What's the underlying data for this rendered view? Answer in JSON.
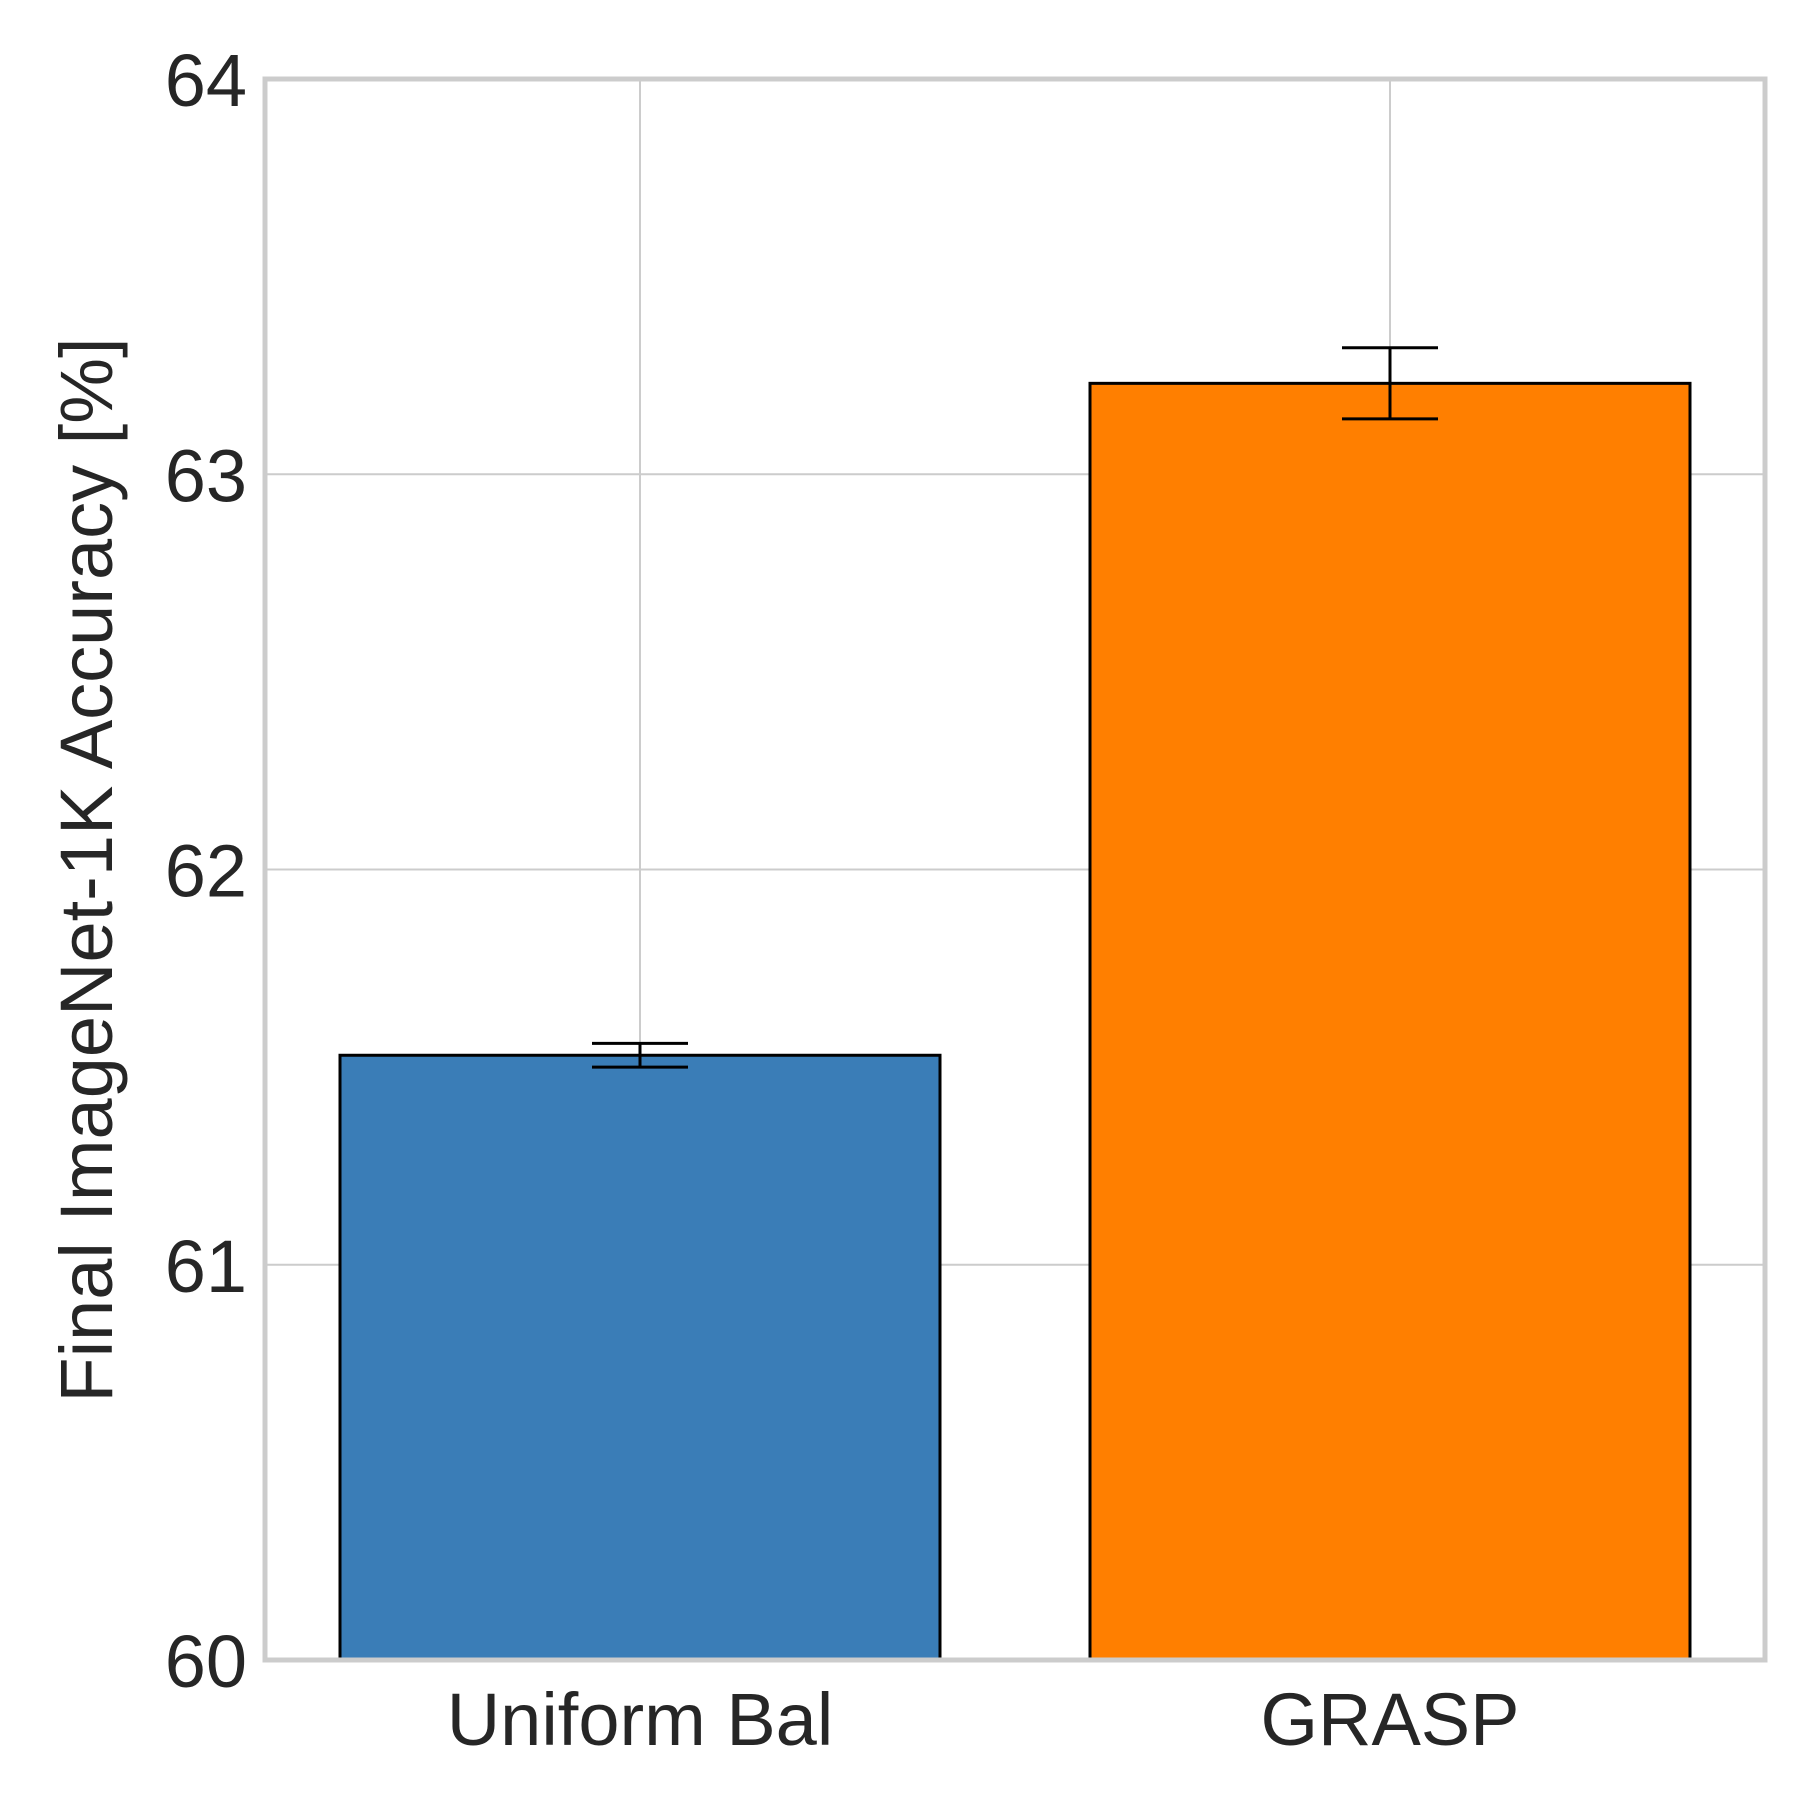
{
  "chart_data": {
    "type": "bar",
    "title": "",
    "xlabel": "",
    "ylabel": "Final ImageNet-1K Accuracy [%]",
    "ylim": [
      60,
      64
    ],
    "yticks": [
      "60",
      "61",
      "62",
      "63",
      "64"
    ],
    "categories": [
      "Uniform Bal",
      "GRASP"
    ],
    "values": [
      61.53,
      63.23
    ],
    "errors": [
      0.03,
      0.09
    ],
    "colors": [
      "#3a7db7",
      "#ff7f00"
    ],
    "grid": true,
    "legend": "none"
  }
}
